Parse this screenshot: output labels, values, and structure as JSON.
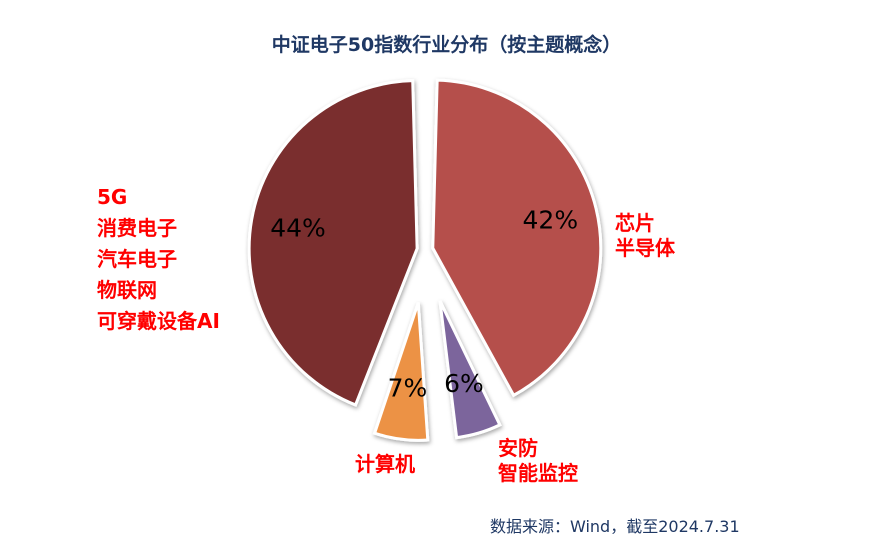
{
  "chart_data": {
    "type": "pie",
    "title": "中证电子50指数行业分布（按主题概念）",
    "slices": [
      {
        "category": "芯片\n半导体",
        "value": 42,
        "label": "42%",
        "color": "#b5504c"
      },
      {
        "category": "安防\n智能监控",
        "value": 6,
        "label": "6%",
        "color": "#7c659c"
      },
      {
        "category": "计算机",
        "value": 7,
        "label": "7%",
        "color": "#ec9245"
      },
      {
        "category": "5G\n消费电子\n汽车电子\n物联网\n可穿戴设备AI",
        "value": 44,
        "label": "44%",
        "color": "#7a2f2e"
      }
    ],
    "source": "数据来源：Wind，截至2024.7.31"
  }
}
